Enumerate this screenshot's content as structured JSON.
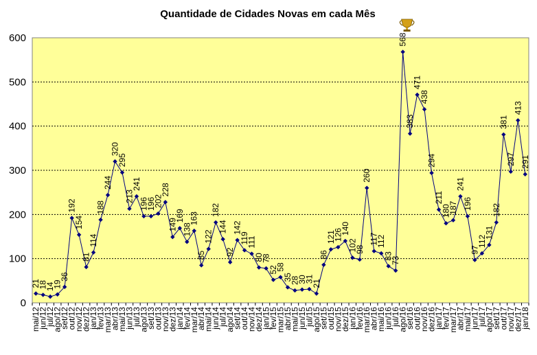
{
  "chart_data": {
    "type": "line",
    "title": "Quantidade de Cidades Novas em cada Mês",
    "xlabel": "",
    "ylabel": "",
    "ylim": [
      0,
      600
    ],
    "yticks": [
      0,
      100,
      200,
      300,
      400,
      500,
      600
    ],
    "grid": true,
    "legend": "none",
    "colors": {
      "plot_background": "#ffff99",
      "line": "#000080",
      "marker": "#000080",
      "trophy": "#d4a017"
    },
    "peak_icon": "trophy-icon",
    "categories": [
      "mai/12",
      "jun/12",
      "jul/12",
      "ago/12",
      "set/12",
      "out/12",
      "nov/12",
      "dez/12",
      "jan/13",
      "fev/13",
      "mar/13",
      "abr/13",
      "mai/13",
      "jun/13",
      "jul/13",
      "ago/13",
      "set/13",
      "out/13",
      "nov/13",
      "dez/13",
      "jan/14",
      "fev/14",
      "mar/14",
      "abr/14",
      "mai/14",
      "jun/14",
      "jul/14",
      "ago/14",
      "set/14",
      "out/14",
      "nov/14",
      "dez/14",
      "jan/15",
      "fev/15",
      "mar/15",
      "abr/15",
      "mai/15",
      "jun/15",
      "jul/15",
      "ago/15",
      "set/15",
      "out/15",
      "nov/15",
      "dez/15",
      "jan/16",
      "fev/16",
      "mar/16",
      "abr/16",
      "mai/16",
      "jun/16",
      "jul/16",
      "ago/16",
      "set/16",
      "out/16",
      "nov/16",
      "dez/16",
      "jan/17",
      "fev/17",
      "mar/17",
      "abr/17",
      "mai/17",
      "jun/17",
      "jul/17",
      "ago/17",
      "set/17",
      "out/17",
      "nov/17",
      "dez/17",
      "jan/18"
    ],
    "series": [
      {
        "values": [
          21,
          18,
          14,
          19,
          36,
          192,
          154,
          81,
          114,
          188,
          244,
          320,
          295,
          213,
          241,
          196,
          196,
          202,
          228,
          149,
          169,
          138,
          163,
          85,
          122,
          182,
          144,
          92,
          142,
          119,
          111,
          80,
          78,
          52,
          58,
          35,
          28,
          30,
          31,
          21,
          86,
          121,
          126,
          140,
          102,
          98,
          260,
          117,
          112,
          83,
          73,
          568,
          383,
          471,
          438,
          294,
          211,
          180,
          187,
          241,
          196,
          97,
          112,
          131,
          182,
          381,
          297,
          413,
          291
        ]
      }
    ]
  }
}
